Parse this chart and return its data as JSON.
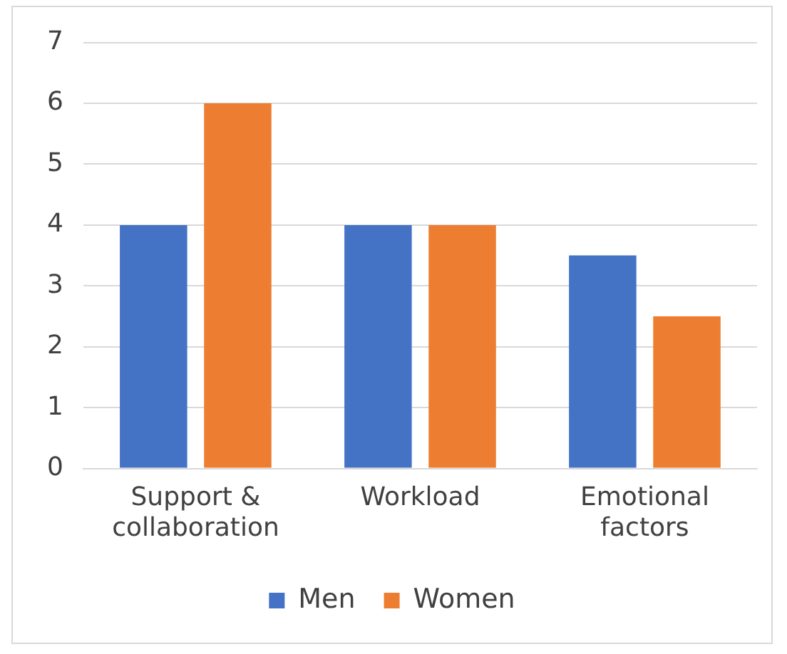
{
  "chart_data": {
    "type": "bar",
    "categories": [
      "Support & collaboration",
      "Workload",
      "Emotional factors"
    ],
    "series": [
      {
        "name": "Men",
        "color": "#4472c4",
        "values": [
          4,
          4,
          3.5
        ]
      },
      {
        "name": "Women",
        "color": "#ed7d31",
        "values": [
          6,
          4,
          2.5
        ]
      }
    ],
    "ylim": [
      0,
      7
    ],
    "yticks": [
      0,
      1,
      2,
      3,
      4,
      5,
      6,
      7
    ],
    "grid": "y",
    "legend": "bottom"
  }
}
